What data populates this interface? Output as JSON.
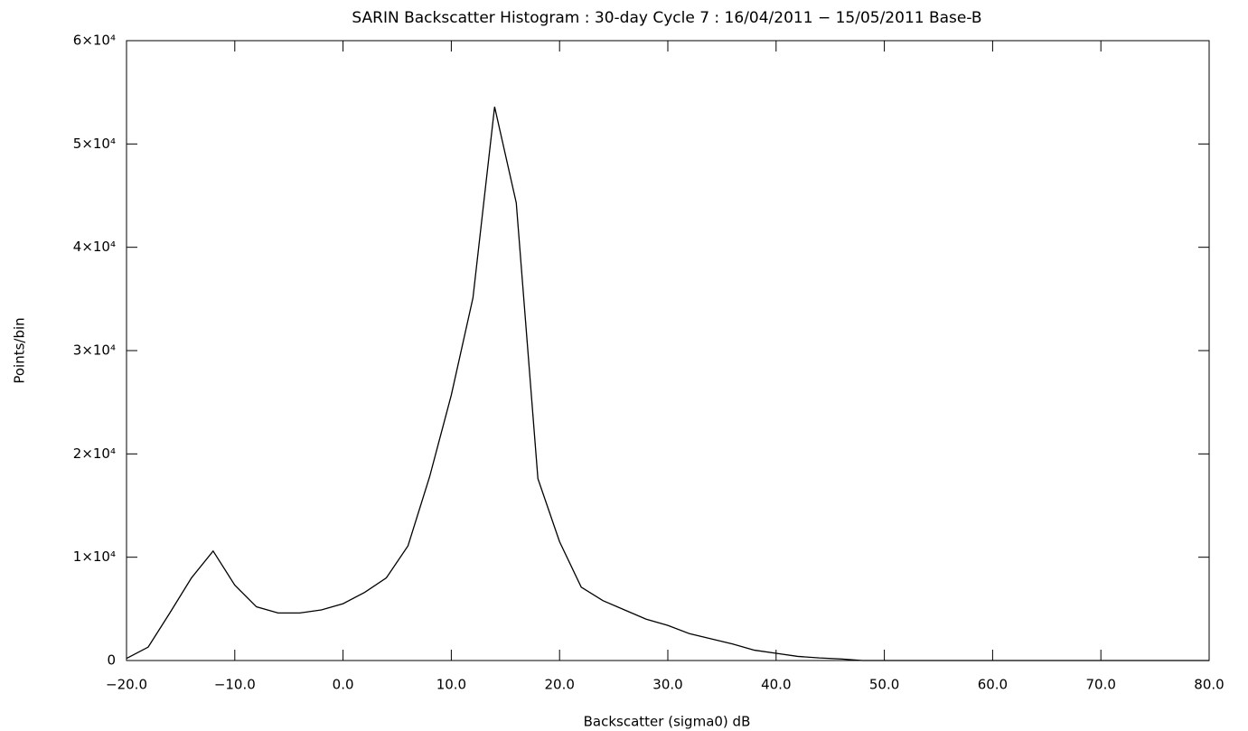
{
  "chart_data": {
    "type": "line",
    "title": "SARIN Backscatter Histogram : 30-day Cycle 7 : 16/04/2011 − 15/05/2011 Base-B",
    "x_label": "Backscatter (sigma0) dB",
    "y_label": "Points/bin",
    "x": [
      -20,
      -18,
      -16,
      -14,
      -12,
      -10,
      -8,
      -6,
      -4,
      -2,
      0,
      2,
      4,
      6,
      8,
      10,
      12,
      14,
      16,
      18,
      20,
      22,
      24,
      26,
      28,
      30,
      32,
      34,
      36,
      38,
      40,
      42,
      44,
      46,
      48,
      50,
      52,
      54,
      56,
      58,
      60,
      62,
      64,
      66,
      68,
      70,
      72,
      74,
      76,
      78,
      80
    ],
    "series": [
      {
        "color": "#000000",
        "values": [
          200,
          1300,
          4600,
          8000,
          10600,
          7300,
          5200,
          4600,
          4600,
          4900,
          5500,
          6600,
          8000,
          11100,
          17800,
          25700,
          35100,
          53600,
          44300,
          17600,
          11500,
          7100,
          5800,
          4900,
          4000,
          3400,
          2600,
          2100,
          1600,
          1000,
          700,
          400,
          250,
          150,
          0,
          0,
          0,
          0,
          0,
          0,
          0,
          0,
          0,
          0,
          0,
          0,
          0,
          0,
          0,
          0,
          0
        ]
      }
    ],
    "xlim": [
      -20,
      80
    ],
    "ylim": [
      0,
      60000
    ],
    "xticks": [
      {
        "value": -20,
        "label": "−20.0"
      },
      {
        "value": -10,
        "label": "−10.0"
      },
      {
        "value": 0,
        "label": "0.0"
      },
      {
        "value": 10,
        "label": "10.0"
      },
      {
        "value": 20,
        "label": "20.0"
      },
      {
        "value": 30,
        "label": "30.0"
      },
      {
        "value": 40,
        "label": "40.0"
      },
      {
        "value": 50,
        "label": "50.0"
      },
      {
        "value": 60,
        "label": "60.0"
      },
      {
        "value": 70,
        "label": "70.0"
      },
      {
        "value": 80,
        "label": "80.0"
      }
    ],
    "yticks": [
      0,
      {
        "value": 10000,
        "label": "1×10⁴"
      },
      {
        "value": 20000,
        "label": "2×10⁴"
      },
      {
        "value": 30000,
        "label": "3×10⁴"
      },
      {
        "value": 40000,
        "label": "4×10⁴"
      },
      {
        "value": 50000,
        "label": "5×10⁴"
      },
      {
        "value": 60000,
        "label": "6×10⁴"
      }
    ]
  }
}
